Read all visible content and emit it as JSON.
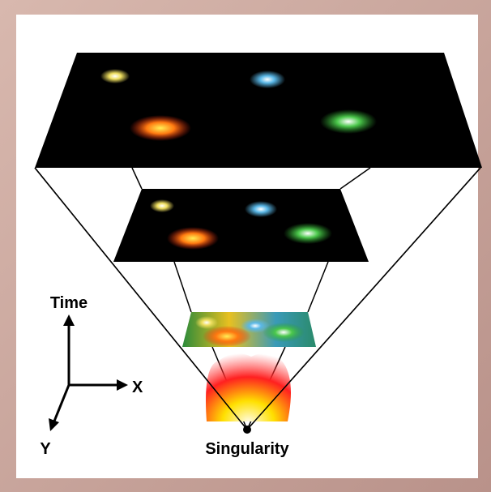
{
  "labels": {
    "time": "Time",
    "x": "X",
    "y": "Y",
    "singularity": "Singularity"
  }
}
